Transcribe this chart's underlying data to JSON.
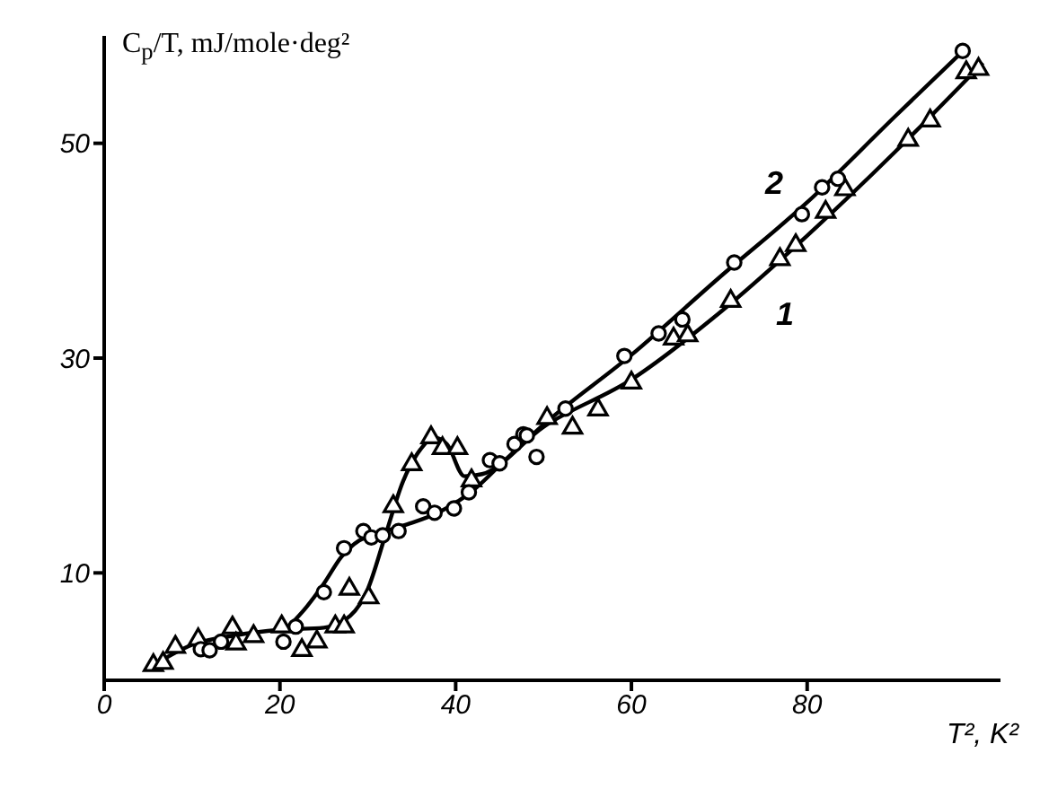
{
  "chart_data": {
    "type": "scatter",
    "xlabel": "T², K²",
    "ylabel": "C$_{p}$/T, mJ/mole·deg²",
    "xlim": [
      0,
      102
    ],
    "ylim": [
      0,
      60
    ],
    "xticks": [
      0,
      20,
      40,
      60,
      80
    ],
    "yticks": [
      10,
      30,
      50
    ],
    "series": [
      {
        "type": "scatter",
        "marker": "triangle",
        "color": "#000000",
        "x": [
          5.6,
          6.7,
          8.1,
          10.7,
          14.6,
          15.0,
          17.0,
          20.2,
          22.5,
          24.2,
          26.3,
          27.3,
          27.9,
          30.1,
          32.9,
          35.0,
          37.2,
          38.5,
          40.2,
          41.8,
          50.4,
          53.3,
          56.2,
          60.0,
          64.8,
          66.4,
          71.3,
          76.9,
          78.7,
          82.1,
          84.3,
          91.5,
          94.0,
          98.1,
          99.5
        ],
        "values": [
          1.4,
          1.6,
          3.1,
          3.8,
          4.9,
          3.4,
          4.1,
          5.0,
          2.8,
          3.6,
          5.0,
          5.0,
          8.5,
          7.7,
          16.2,
          20.1,
          22.6,
          21.6,
          21.6,
          18.6,
          24.4,
          23.5,
          25.2,
          27.7,
          31.8,
          32.1,
          35.3,
          39.2,
          40.5,
          43.6,
          45.7,
          50.3,
          52.1,
          56.6,
          56.9
        ]
      },
      {
        "type": "scatter",
        "marker": "circle",
        "color": "#000000",
        "x": [
          11.0,
          12.0,
          13.3,
          20.4,
          21.8,
          25.0,
          27.3,
          29.5,
          30.4,
          31.7,
          33.5,
          36.3,
          37.6,
          39.8,
          41.5,
          43.9,
          45.0,
          46.7,
          47.7,
          48.1,
          49.2,
          52.5,
          59.2,
          63.1,
          65.8,
          71.7,
          79.4,
          81.7,
          83.5,
          97.7
        ],
        "values": [
          2.9,
          2.8,
          3.6,
          3.6,
          5.0,
          8.2,
          12.3,
          13.9,
          13.3,
          13.5,
          13.9,
          16.2,
          15.6,
          16.0,
          17.5,
          20.5,
          20.2,
          22.0,
          22.9,
          22.8,
          20.8,
          25.3,
          30.2,
          32.3,
          33.6,
          38.9,
          43.4,
          45.9,
          46.7,
          58.6
        ]
      },
      {
        "type": "line",
        "marker": "none",
        "color": "#000000",
        "x": [
          5.6,
          10,
          15,
          20,
          25,
          28,
          30,
          32,
          34,
          36,
          37.5,
          39,
          41,
          43,
          50,
          60,
          70,
          80,
          90,
          100
        ],
        "values": [
          1.4,
          3.3,
          4.2,
          4.7,
          4.9,
          6,
          8.5,
          13.5,
          18.5,
          21.5,
          22.6,
          22,
          19,
          19.2,
          23.6,
          28,
          34.2,
          41.4,
          49.2,
          57.5
        ]
      },
      {
        "type": "line",
        "marker": "none",
        "color": "#000000",
        "x": [
          21,
          23,
          25,
          27,
          29,
          31,
          34,
          38,
          42,
          46,
          50,
          60,
          70,
          80,
          90,
          98
        ],
        "values": [
          5,
          6.8,
          9,
          11.5,
          13,
          13.6,
          14.4,
          15.6,
          17.7,
          20.8,
          23.8,
          30.3,
          37.5,
          44.5,
          52.5,
          58.8
        ]
      }
    ],
    "annotations": [
      "2",
      "1"
    ]
  }
}
